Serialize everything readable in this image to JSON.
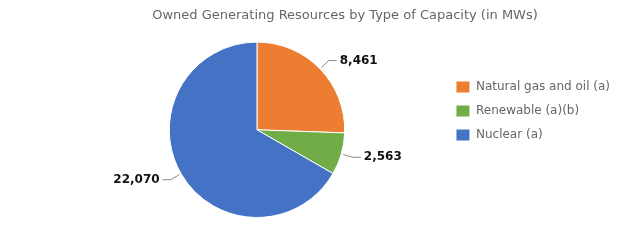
{
  "chart_data": {
    "type": "pie",
    "title": "Owned Generating Resources by Type of Capacity (in MWs)",
    "categories": [
      "Natural gas and oil (a)",
      "Renewable (a)(b)",
      "Nuclear (a)"
    ],
    "values": [
      8461,
      2563,
      22070
    ],
    "value_labels": [
      "8,461",
      "2,563",
      "22,070"
    ],
    "colors": [
      "#ED7D31",
      "#70AD47",
      "#4472C4"
    ],
    "data_labels": true,
    "legend": "right"
  }
}
